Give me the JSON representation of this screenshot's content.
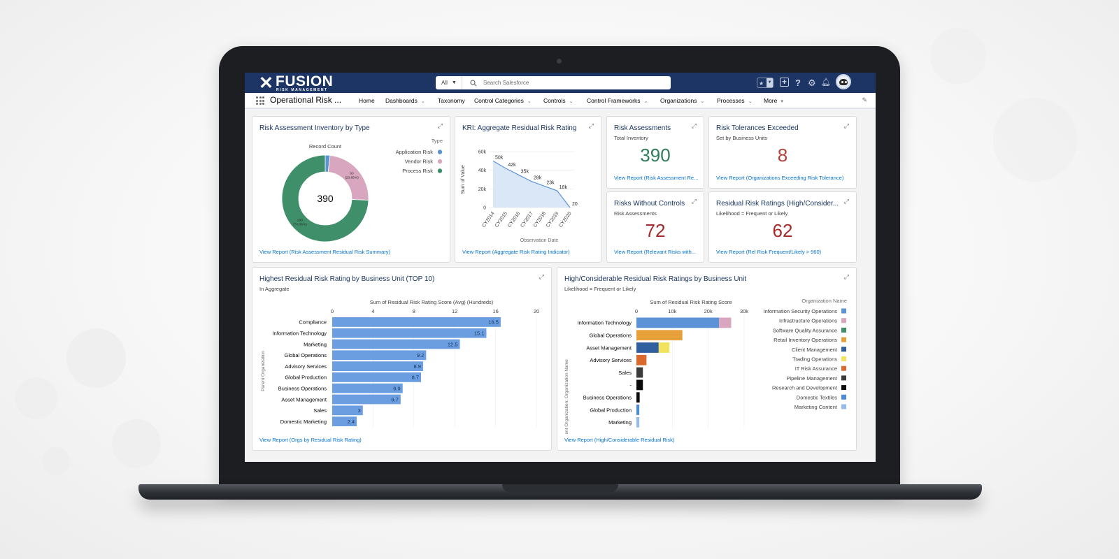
{
  "header": {
    "logo_word": "FUSION",
    "logo_sub": "RISK MANAGEMENT",
    "search_scope": "All",
    "search_placeholder": "Search Salesforce"
  },
  "nav": {
    "app_name": "Operational Risk ...",
    "items": [
      {
        "label": "Home",
        "dropdown": false
      },
      {
        "label": "Dashboards",
        "dropdown": true
      },
      {
        "label": "Taxonomy",
        "dropdown": false
      },
      {
        "label": "Control Categories",
        "dropdown": true
      },
      {
        "label": "Controls",
        "dropdown": true
      },
      {
        "label": "Control Frameworks",
        "dropdown": true
      },
      {
        "label": "Organizations",
        "dropdown": true
      },
      {
        "label": "Processes",
        "dropdown": true
      },
      {
        "label": "More",
        "dropdown": true
      }
    ]
  },
  "cards": {
    "inventory": {
      "title": "Risk Assessment Inventory by Type",
      "link": "View Report (Risk Assessment Residual Risk Summary)"
    },
    "kri": {
      "title": "KRI: Aggregate Residual Risk Rating",
      "link": "View Report (Aggregate Risk Rating Indicator)"
    },
    "assessments": {
      "title": "Risk Assessments",
      "subtitle": "Total Inventory",
      "value": "390",
      "link": "View Report (Risk Assessment Re..."
    },
    "tolerances": {
      "title": "Risk Tolerances Exceeded",
      "subtitle": "Set by Business Units",
      "value": "8",
      "link": "View Report (Organizations Exceeding Risk Tolerance)"
    },
    "without_controls": {
      "title": "Risks Without Controls",
      "subtitle": "Risk Assessments",
      "value": "72",
      "link": "View Report (Relevant Risks with..."
    },
    "residual_ratings": {
      "title": "Residual Risk Ratings (High/Consider...",
      "subtitle": "Likelihood = Frequent or Likely",
      "value": "62",
      "link": "View Report (Rel Risk Frequent/Likely > 960)"
    },
    "highest": {
      "title": "Highest Residual Risk Rating by Business Unit (TOP 10)",
      "subtitle": "In Aggregate",
      "link": "View Report (Orgs by Residual Risk Rating)"
    },
    "considerable": {
      "title": "High/Considerable Residual Risk Ratings by Business Unit",
      "subtitle": "Likelihood = Frequent or Likely",
      "link": "View Report (High/Considerable Residual Risk)"
    }
  },
  "colors": {
    "header_bg": "#1c3564",
    "link": "#0070d2",
    "metric_green": "#2e7d5b",
    "metric_red": "#a52a2a",
    "bar_blue": "#6a9ee0"
  },
  "chart_data": [
    {
      "id": "donut",
      "type": "pie",
      "title": "Record Count",
      "center_label": "390",
      "legend_title": "Type",
      "legend_position": "right",
      "slices": [
        {
          "label": "Application Risk",
          "value": 7,
          "color": "#5b93d6",
          "text": ""
        },
        {
          "label": "Vendor Risk",
          "value": 93,
          "color": "#d8a7bf",
          "text": "93\n(23.85%)"
        },
        {
          "label": "Process Risk",
          "value": 290,
          "color": "#3f8f6a",
          "text": "290\n(74.36%)"
        }
      ]
    },
    {
      "id": "kri",
      "type": "area",
      "xlabel": "Observation Date",
      "ylabel": "Sum of Value",
      "ylim": [
        0,
        60000
      ],
      "yticks": [
        0,
        20000,
        40000,
        60000
      ],
      "ytick_labels": [
        "0",
        "20k",
        "40k",
        "60k"
      ],
      "categories": [
        "CY2014",
        "CY2015",
        "CY2016",
        "CY2017",
        "CY2018",
        "CY2019",
        "CY2020"
      ],
      "values": [
        50000,
        42000,
        35000,
        28000,
        23000,
        18000,
        20
      ],
      "labels": [
        "50k",
        "42k",
        "35k",
        "28k",
        "23k",
        "18k",
        "20"
      ],
      "color": "#5b93d6",
      "grid": true
    },
    {
      "id": "highest",
      "type": "bar",
      "orientation": "horizontal",
      "xlabel": "Sum of Residual Risk Rating Score (Avg) (Hundreds)",
      "ylabel": "Parent Organization",
      "xlim": [
        0,
        20
      ],
      "xticks": [
        0,
        4,
        8,
        12,
        16,
        20
      ],
      "categories": [
        "Compliance",
        "Information Technology",
        "Marketing",
        "Global Operations",
        "Advisory Services",
        "Global Production",
        "Business Operations",
        "Asset Management",
        "Sales",
        "Domestic Marketing"
      ],
      "values": [
        16.5,
        15.1,
        12.5,
        9.2,
        8.9,
        8.7,
        6.9,
        6.7,
        3,
        2.4
      ],
      "labels": [
        "16.5",
        "15.1",
        "12.5",
        "9.2",
        "8.9",
        "8.7",
        "6.9",
        "6.7",
        "3",
        "2.4"
      ],
      "color": "#6a9ee0",
      "grid": true
    },
    {
      "id": "considerable",
      "type": "bar",
      "orientation": "horizontal",
      "stacked": true,
      "xlabel": "Sum of Residual Risk Rating Score",
      "ylabel": "Parent Organization: Organization Name",
      "xlim": [
        0,
        30000
      ],
      "xticks": [
        0,
        10000,
        20000,
        30000
      ],
      "xtick_labels": [
        "0",
        "10k",
        "20k",
        "30k"
      ],
      "legend_title": "Organization Name",
      "legend_position": "right",
      "categories": [
        "Information Technology",
        "Global Operations",
        "Asset Management",
        "Advisory Services",
        "Sales",
        "-",
        "Business Operations",
        "Global Production",
        "Marketing"
      ],
      "series": [
        {
          "name": "Information Security Operations",
          "color": "#5b93d6",
          "values": [
            23000,
            0,
            0,
            0,
            0,
            0,
            0,
            0,
            0
          ]
        },
        {
          "name": "Infrastructure Operations",
          "color": "#d8a7bf",
          "values": [
            3400,
            0,
            0,
            0,
            0,
            0,
            0,
            0,
            0
          ]
        },
        {
          "name": "Software Quality Assurance",
          "color": "#3f8f6a",
          "values": [
            0,
            0,
            0,
            0,
            0,
            0,
            0,
            0,
            0
          ]
        },
        {
          "name": "Retail Inventory Operations",
          "color": "#e8a13a",
          "values": [
            0,
            12800,
            0,
            0,
            0,
            0,
            0,
            0,
            0
          ]
        },
        {
          "name": "Client Management",
          "color": "#2f5f9e",
          "values": [
            0,
            0,
            6200,
            0,
            0,
            0,
            0,
            0,
            0
          ]
        },
        {
          "name": "Trading Operations",
          "color": "#f2e35e",
          "values": [
            0,
            0,
            3000,
            0,
            0,
            0,
            0,
            0,
            0
          ]
        },
        {
          "name": "IT Risk Assurance",
          "color": "#d9692c",
          "values": [
            0,
            0,
            0,
            2800,
            0,
            0,
            0,
            0,
            0
          ]
        },
        {
          "name": "Pipeline Management",
          "color": "#3b3b3b",
          "values": [
            0,
            0,
            0,
            0,
            1800,
            0,
            0,
            0,
            0
          ]
        },
        {
          "name": "Research and Development",
          "color": "#0b0b0b",
          "values": [
            0,
            0,
            0,
            0,
            0,
            1800,
            900,
            0,
            0
          ]
        },
        {
          "name": "Domestic Textiles",
          "color": "#4d8ad6",
          "values": [
            0,
            0,
            0,
            0,
            0,
            0,
            0,
            800,
            0
          ]
        },
        {
          "name": "Marketing Content",
          "color": "#93bde8",
          "values": [
            0,
            0,
            0,
            0,
            0,
            0,
            0,
            0,
            800
          ]
        }
      ],
      "grid": true
    }
  ]
}
